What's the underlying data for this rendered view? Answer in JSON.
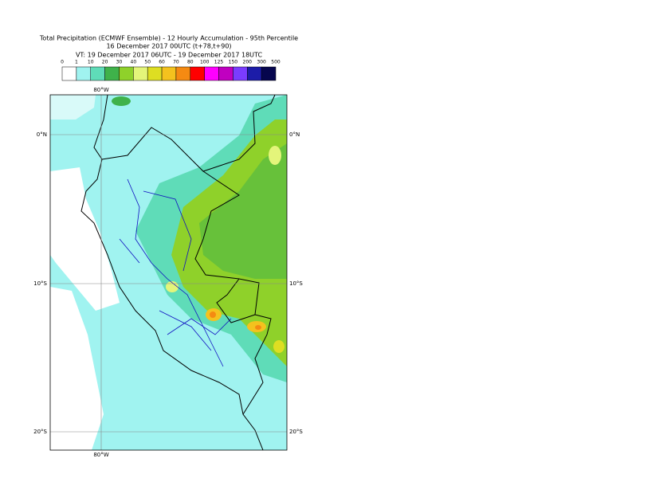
{
  "header": {
    "lines": [
      "Total Precipitation (ECMWF Ensemble) - 12 Hourly Accumulation - 95th Percentile",
      "16 December 2017 00UTC (t+78,t+90)",
      "VT: 19 December 2017 06UTC - 19 December 2017 18UTC"
    ]
  },
  "legend": {
    "labels": [
      0,
      1,
      10,
      20,
      30,
      40,
      50,
      60,
      70,
      80,
      100,
      125,
      150,
      200,
      300,
      500
    ],
    "colors": [
      "#ffffff",
      "#a0f3f0",
      "#5fdcb8",
      "#3fb24a",
      "#8fd12a",
      "#e4f57a",
      "#dede22",
      "#f4c21e",
      "#f58a12",
      "#ff0000",
      "#ff00ff",
      "#c000c0",
      "#7a3cff",
      "#1c1ca8",
      "#06064e"
    ]
  },
  "map": {
    "lon_labels": [
      "80°W"
    ],
    "lat_labels": [
      "0°N",
      "10°S",
      "20°S"
    ]
  }
}
